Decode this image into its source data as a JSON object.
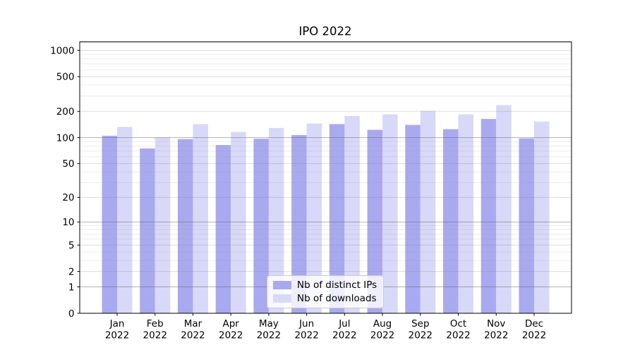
{
  "figure": {
    "background": "#ffffff"
  },
  "chart_data": {
    "type": "bar",
    "title": "IPO 2022",
    "scale": "log1p",
    "categories": [
      "Jan\n2022",
      "Feb\n2022",
      "Mar\n2022",
      "Apr\n2022",
      "May\n2022",
      "Jun\n2022",
      "Jul\n2022",
      "Aug\n2022",
      "Sep\n2022",
      "Oct\n2022",
      "Nov\n2022",
      "Dec\n2022"
    ],
    "series": [
      {
        "name": "Nb of distinct IPs",
        "color": "#a9a9ef",
        "values": [
          105,
          75,
          96,
          82,
          97,
          107,
          143,
          123,
          140,
          125,
          164,
          98
        ]
      },
      {
        "name": "Nb of downloads",
        "color": "#d8d8f8",
        "values": [
          133,
          100,
          143,
          116,
          129,
          145,
          177,
          185,
          203,
          185,
          236,
          153
        ]
      }
    ],
    "yticks": [
      0,
      1,
      2,
      5,
      10,
      20,
      50,
      100,
      200,
      500,
      1000
    ],
    "ylim": [
      0,
      1250
    ],
    "grid": true,
    "legend_position": "lower center",
    "style": {
      "grid_color_emphasis": "rgba(90,90,90,0.45)",
      "grid_color_labeled": "rgba(120,120,120,0.25)",
      "grid_color_minor": "rgba(150,150,150,0.18)",
      "axis_color": "#000000",
      "text_color": "#000000"
    }
  }
}
